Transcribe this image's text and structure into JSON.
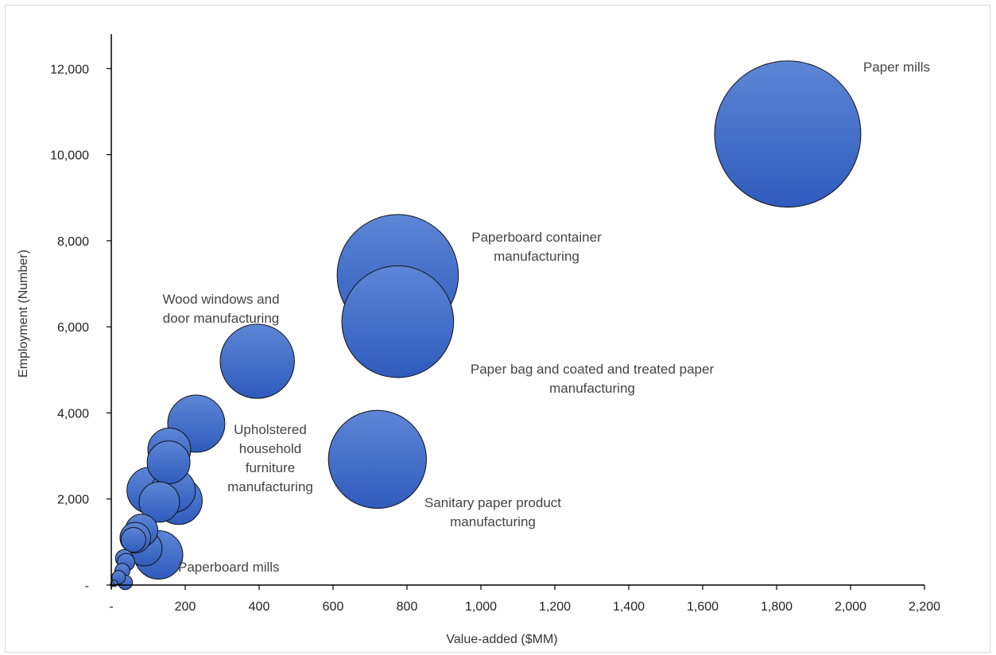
{
  "chart_data": {
    "type": "scatter",
    "subtype": "bubble",
    "xlabel": "Value-added  ($MM)",
    "ylabel": "Employment  (Number)",
    "xlim": [
      0,
      2200
    ],
    "ylim": [
      0,
      12800
    ],
    "x_ticks": [
      "-",
      "200",
      "400",
      "600",
      "800",
      "1,000",
      "1,200",
      "1,400",
      "1,600",
      "1,800",
      "2,000",
      "2,200"
    ],
    "y_ticks": [
      "-",
      "2,000",
      "4,000",
      "6,000",
      "8,000",
      "10,000",
      "12,000"
    ],
    "bubble_color": "#3a66c4",
    "grid": false,
    "points": [
      {
        "x": 1830,
        "y": 10480,
        "size": 10480,
        "label": [
          "Paper mills"
        ]
      },
      {
        "x": 775,
        "y": 7200,
        "size": 7200,
        "label": [
          "Paperboard container",
          "manufacturing"
        ]
      },
      {
        "x": 775,
        "y": 6120,
        "size": 6120,
        "label": [
          "Paper bag and coated and treated paper",
          "manufacturing"
        ]
      },
      {
        "x": 720,
        "y": 2920,
        "size": 4700,
        "label": [
          "Sanitary paper product",
          "manufacturing"
        ]
      },
      {
        "x": 395,
        "y": 5200,
        "size": 2700,
        "label": [
          "Wood windows and",
          "door manufacturing"
        ]
      },
      {
        "x": 230,
        "y": 3750,
        "size": 1600,
        "label": [
          "Upholstered",
          "household",
          "furniture",
          "manufacturing"
        ]
      },
      {
        "x": 157,
        "y": 3150,
        "size": 900
      },
      {
        "x": 155,
        "y": 2850,
        "size": 900
      },
      {
        "x": 168,
        "y": 2200,
        "size": 950
      },
      {
        "x": 105,
        "y": 2200,
        "size": 1050
      },
      {
        "x": 130,
        "y": 1930,
        "size": 800
      },
      {
        "x": 182,
        "y": 1960,
        "size": 1100
      },
      {
        "x": 128,
        "y": 700,
        "size": 1150,
        "label": [
          "Paperboard mills"
        ]
      },
      {
        "x": 82,
        "y": 1270,
        "size": 520
      },
      {
        "x": 65,
        "y": 1100,
        "size": 460
      },
      {
        "x": 60,
        "y": 1050,
        "size": 300
      },
      {
        "x": 90,
        "y": 850,
        "size": 600
      },
      {
        "x": 35,
        "y": 620,
        "size": 150
      },
      {
        "x": 40,
        "y": 530,
        "size": 150
      },
      {
        "x": 30,
        "y": 330,
        "size": 110
      },
      {
        "x": 20,
        "y": 180,
        "size": 90
      },
      {
        "x": 38,
        "y": 60,
        "size": 100
      },
      {
        "x": 8,
        "y": 40,
        "size": 20
      },
      {
        "x": 3,
        "y": 15,
        "size": 8
      }
    ]
  }
}
